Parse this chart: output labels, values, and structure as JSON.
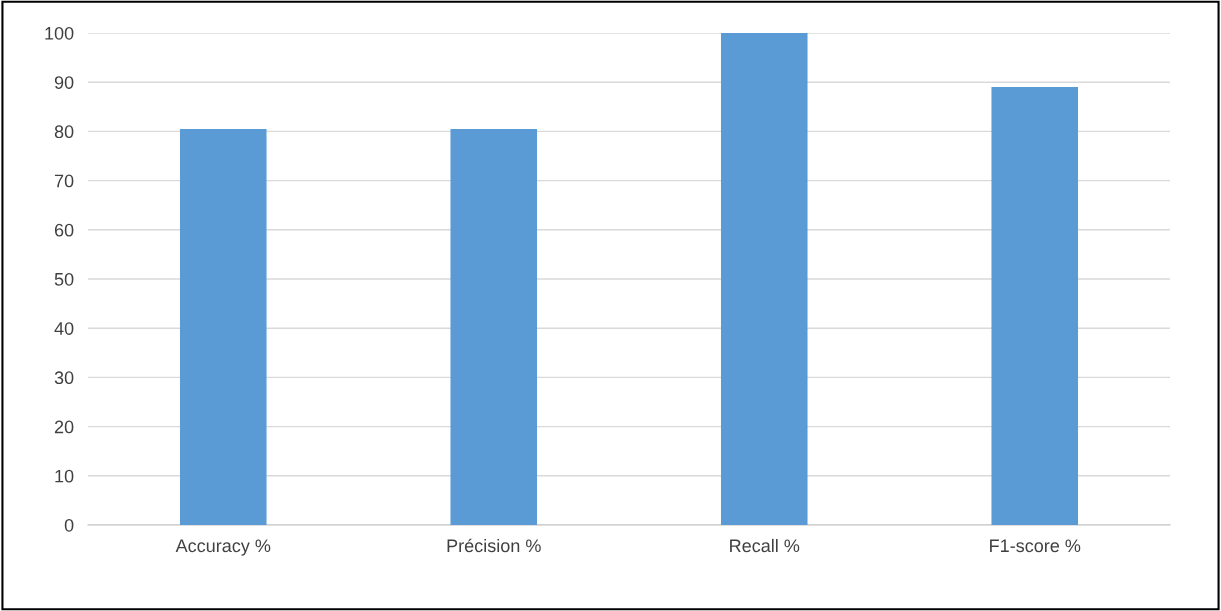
{
  "chart_data": {
    "type": "bar",
    "categories": [
      "Accuracy %",
      "Précision %",
      "Recall %",
      "F1-score %"
    ],
    "values": [
      80.5,
      80.5,
      100,
      89
    ],
    "color": "#5b9bd5",
    "ylim": [
      0,
      100
    ],
    "yticks": [
      0,
      10,
      20,
      30,
      40,
      50,
      60,
      70,
      80,
      90,
      100
    ],
    "grid": "y",
    "legend": false
  }
}
